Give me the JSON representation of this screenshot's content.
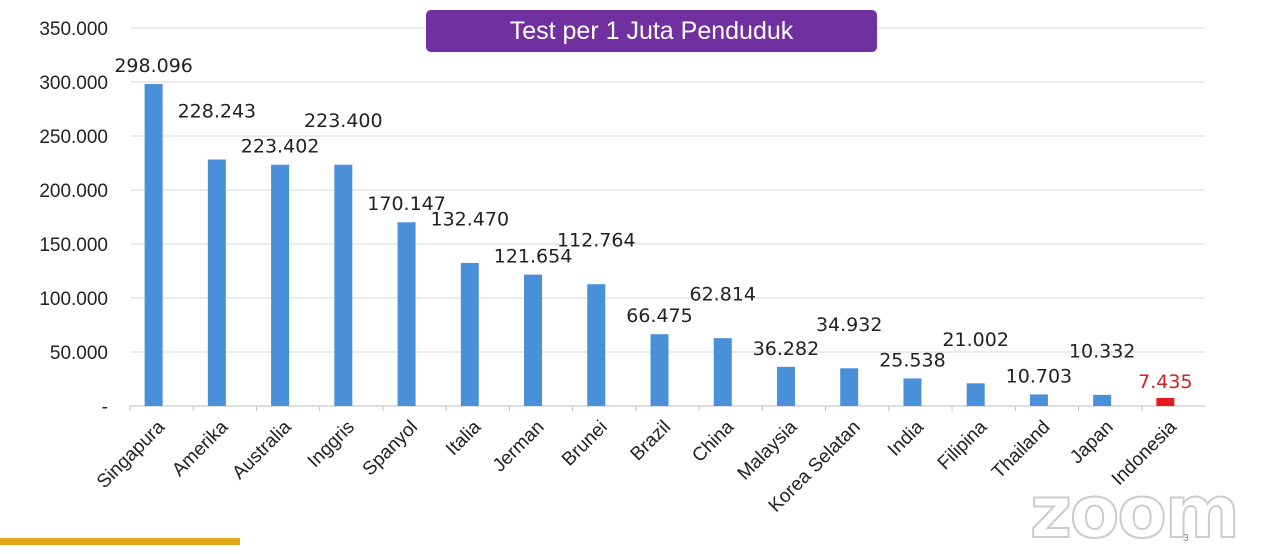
{
  "title": "Test per 1 Juta Penduduk",
  "watermark": "zoom",
  "page_number": "3",
  "colors": {
    "bar": "#4a90d9",
    "highlight_bar": "#e8191b",
    "highlight_label": "#d42020",
    "title_bg": "#7030a0",
    "grid": "#d9d9d9"
  },
  "chart_data": {
    "type": "bar",
    "title": "Test per 1 Juta Penduduk",
    "categories": [
      "Singapura",
      "Amerika",
      "Australia",
      "Inggris",
      "Spanyol",
      "Italia",
      "Jerman",
      "Brunei",
      "Brazil",
      "China",
      "Malaysia",
      "Korea Selatan",
      "India",
      "Filipina",
      "Thailand",
      "Japan",
      "Indonesia"
    ],
    "values": [
      298096,
      228243,
      223402,
      223400,
      170147,
      132470,
      121654,
      112764,
      66475,
      62814,
      36282,
      34932,
      25538,
      21002,
      10703,
      10332,
      7435
    ],
    "data_labels": [
      "298.096",
      "228.243",
      "223.402",
      "223.400",
      "170.147",
      "132.470",
      "121.654",
      "112.764",
      "66.475",
      "62.814",
      "36.282",
      "34.932",
      "25.538",
      "21.002",
      "10.703",
      "10.332",
      "7.435"
    ],
    "highlight": "Indonesia",
    "ylim": [
      0,
      350000
    ],
    "yticks": [
      0,
      50000,
      100000,
      150000,
      200000,
      250000,
      300000,
      350000
    ],
    "ytick_labels": [
      "-",
      "50.000",
      "100.000",
      "150.000",
      "200.000",
      "250.000",
      "300.000",
      "350.000"
    ],
    "grid": true,
    "legend": "none"
  }
}
